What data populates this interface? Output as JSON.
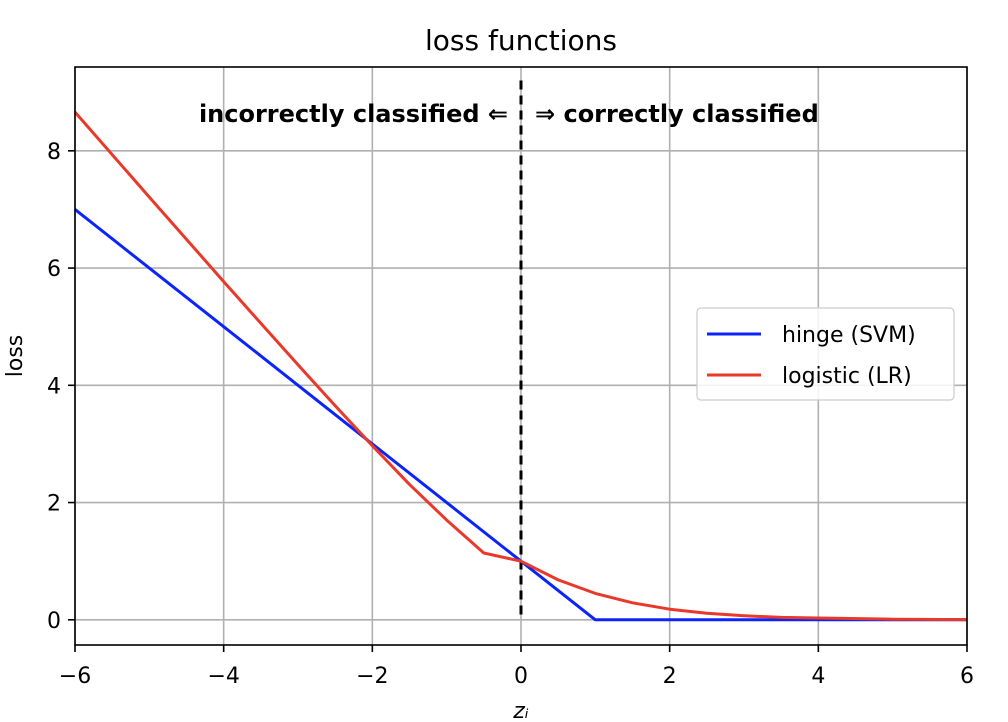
{
  "chart_data": {
    "type": "line",
    "title": "loss functions",
    "xlabel": "zᵢ",
    "ylabel": "loss",
    "xlim": [
      -6,
      6
    ],
    "ylim": [
      -0.43,
      9.43
    ],
    "xticks": [
      -6,
      -4,
      -2,
      0,
      2,
      4,
      6
    ],
    "yticks": [
      0,
      2,
      4,
      6,
      8
    ],
    "xtick_labels": [
      "−6",
      "−4",
      "−2",
      "0",
      "2",
      "4",
      "6"
    ],
    "ytick_labels": [
      "0",
      "2",
      "4",
      "6",
      "8"
    ],
    "grid": true,
    "legend_position": "center-right",
    "series": [
      {
        "name": "hinge (SVM)",
        "color": "#0b24fb",
        "x": [
          -6,
          -5,
          -4,
          -3,
          -2,
          -1,
          0,
          1,
          2,
          3,
          4,
          5,
          6
        ],
        "y": [
          7,
          6,
          5,
          4,
          3,
          2,
          1,
          0,
          0,
          0,
          0,
          0,
          0
        ]
      },
      {
        "name": "logistic (LR)",
        "color": "#e8392a",
        "x": [
          -6,
          -5,
          -4,
          -3.5,
          -3,
          -2.5,
          -2,
          -1.5,
          -1,
          -0.5,
          0,
          0.5,
          1,
          1.5,
          2,
          2.5,
          3,
          3.5,
          4,
          5,
          6
        ],
        "y": [
          8.66,
          7.21,
          5.77,
          5.06,
          4.35,
          3.65,
          2.97,
          2.31,
          1.7,
          1.14,
          1.0,
          0.68,
          0.45,
          0.29,
          0.18,
          0.11,
          0.07,
          0.04,
          0.03,
          0.01,
          0.004
        ]
      }
    ],
    "vline": {
      "x": 0,
      "style": "dashed",
      "color": "#000000"
    },
    "annotation": {
      "left": "incorrectly classified ⇐",
      "right": "⇒ correctly classified"
    }
  }
}
